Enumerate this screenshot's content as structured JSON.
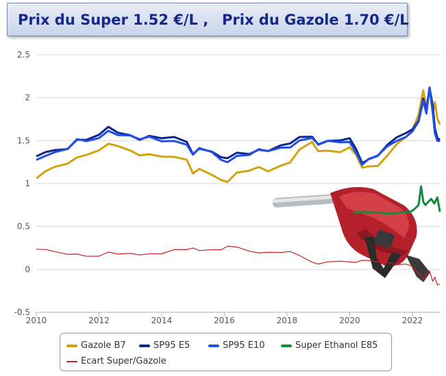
{
  "title": {
    "super_price": "Prix du Super 1.52 €/L ,",
    "diesel_price": "Prix du Gazole 1.70 €/L"
  },
  "chart_data": {
    "type": "line",
    "title": "Prix du Super 1.52 €/L , Prix du Gazole 1.70 €/L",
    "xlabel": "",
    "ylabel": "",
    "xlim": [
      2010,
      2022.9
    ],
    "ylim": [
      -0.5,
      2.5
    ],
    "x_ticks": [
      "2010",
      "2012",
      "2014",
      "2016",
      "2018",
      "2020",
      "2022"
    ],
    "y_ticks": [
      "2.5",
      "2",
      "1.5",
      "1",
      "0.5",
      "0",
      "-0.5"
    ],
    "grid": true,
    "legend_position": "bottom",
    "series": [
      {
        "name": "Gazole B7",
        "color": "#d4a20e",
        "x": [
          2010.0,
          2010.3,
          2010.6,
          2011.0,
          2011.3,
          2011.6,
          2012.0,
          2012.3,
          2012.6,
          2013.0,
          2013.3,
          2013.6,
          2014.0,
          2014.4,
          2014.8,
          2015.0,
          2015.2,
          2015.6,
          2015.9,
          2016.1,
          2016.4,
          2016.8,
          2017.1,
          2017.4,
          2017.8,
          2018.1,
          2018.4,
          2018.8,
          2019.0,
          2019.3,
          2019.7,
          2020.0,
          2020.2,
          2020.4,
          2020.6,
          2020.9,
          2021.2,
          2021.5,
          2021.8,
          2022.0,
          2022.2,
          2022.35,
          2022.45,
          2022.55,
          2022.65,
          2022.72,
          2022.8,
          2022.88
        ],
        "y": [
          1.06,
          1.13,
          1.18,
          1.23,
          1.32,
          1.35,
          1.39,
          1.45,
          1.42,
          1.38,
          1.34,
          1.36,
          1.32,
          1.3,
          1.26,
          1.11,
          1.18,
          1.12,
          1.05,
          1.01,
          1.11,
          1.14,
          1.2,
          1.16,
          1.22,
          1.24,
          1.38,
          1.47,
          1.38,
          1.4,
          1.38,
          1.42,
          1.32,
          1.17,
          1.2,
          1.22,
          1.34,
          1.46,
          1.53,
          1.6,
          1.8,
          2.1,
          1.9,
          2.12,
          1.8,
          1.93,
          1.75,
          1.7
        ]
      },
      {
        "name": "SP95 E5",
        "color": "#10268c",
        "x": [
          2010.0,
          2010.3,
          2010.6,
          2011.0,
          2011.3,
          2011.6,
          2012.0,
          2012.3,
          2012.6,
          2013.0,
          2013.3,
          2013.6,
          2014.0,
          2014.4,
          2014.8,
          2015.0,
          2015.2,
          2015.6,
          2015.9,
          2016.1,
          2016.4,
          2016.8,
          2017.1,
          2017.4,
          2017.8,
          2018.1,
          2018.4,
          2018.8,
          2019.0,
          2019.3,
          2019.7,
          2020.0,
          2020.2,
          2020.4,
          2020.6,
          2020.9,
          2021.2,
          2021.5,
          2021.8,
          2022.0,
          2022.2,
          2022.35,
          2022.45,
          2022.55,
          2022.65,
          2022.72,
          2022.8,
          2022.88
        ],
        "y": [
          1.3,
          1.36,
          1.4,
          1.42,
          1.52,
          1.5,
          1.55,
          1.65,
          1.6,
          1.58,
          1.52,
          1.55,
          1.51,
          1.53,
          1.49,
          1.36,
          1.42,
          1.37,
          1.29,
          1.28,
          1.36,
          1.36,
          1.41,
          1.38,
          1.43,
          1.45,
          1.54,
          1.56,
          1.47,
          1.5,
          1.49,
          1.51,
          1.4,
          1.25,
          1.3,
          1.33,
          1.44,
          1.52,
          1.58,
          1.64,
          1.75,
          2.0,
          1.85,
          2.1,
          1.9,
          1.65,
          1.55,
          1.52
        ]
      },
      {
        "name": "SP95 E10",
        "color": "#1f4fe6",
        "x": [
          2010.0,
          2010.3,
          2010.6,
          2011.0,
          2011.3,
          2011.6,
          2012.0,
          2012.3,
          2012.6,
          2013.0,
          2013.3,
          2013.6,
          2014.0,
          2014.4,
          2014.8,
          2015.0,
          2015.2,
          2015.6,
          2015.9,
          2016.1,
          2016.4,
          2016.8,
          2017.1,
          2017.4,
          2017.8,
          2018.1,
          2018.4,
          2018.8,
          2019.0,
          2019.3,
          2019.7,
          2020.0,
          2020.2,
          2020.4,
          2020.6,
          2020.9,
          2021.2,
          2021.5,
          2021.8,
          2022.0,
          2022.2,
          2022.35,
          2022.45,
          2022.55,
          2022.65,
          2022.72,
          2022.8,
          2022.88
        ],
        "y": [
          1.28,
          1.34,
          1.38,
          1.4,
          1.5,
          1.48,
          1.53,
          1.63,
          1.58,
          1.56,
          1.5,
          1.53,
          1.49,
          1.51,
          1.47,
          1.34,
          1.4,
          1.35,
          1.27,
          1.26,
          1.34,
          1.34,
          1.39,
          1.36,
          1.41,
          1.43,
          1.52,
          1.54,
          1.45,
          1.48,
          1.47,
          1.49,
          1.38,
          1.23,
          1.28,
          1.31,
          1.42,
          1.5,
          1.56,
          1.62,
          1.72,
          1.95,
          1.8,
          2.12,
          1.85,
          1.6,
          1.5,
          1.48
        ]
      },
      {
        "name": "Super Ethanol E85",
        "color": "#168a3c",
        "x": [
          2020.1,
          2020.5,
          2020.9,
          2021.3,
          2021.7,
          2021.9,
          2022.0,
          2022.1,
          2022.2,
          2022.28,
          2022.35,
          2022.42,
          2022.5,
          2022.6,
          2022.7,
          2022.8,
          2022.88
        ],
        "y": [
          0.68,
          0.67,
          0.65,
          0.63,
          0.66,
          0.68,
          0.7,
          0.72,
          0.74,
          0.95,
          0.78,
          0.76,
          0.8,
          0.83,
          0.76,
          0.82,
          0.66
        ]
      },
      {
        "name": "Ecart Super/Gazole",
        "color": "#cc1f1f",
        "x": [
          2010.0,
          2010.3,
          2010.6,
          2011.0,
          2011.3,
          2011.6,
          2012.0,
          2012.3,
          2012.6,
          2013.0,
          2013.3,
          2013.6,
          2014.0,
          2014.4,
          2014.8,
          2015.0,
          2015.2,
          2015.6,
          2015.9,
          2016.1,
          2016.4,
          2016.8,
          2017.1,
          2017.4,
          2017.8,
          2018.1,
          2018.4,
          2018.8,
          2019.0,
          2019.3,
          2019.7,
          2020.0,
          2020.2,
          2020.4,
          2020.6,
          2020.9,
          2021.2,
          2021.5,
          2021.8,
          2022.0,
          2022.2,
          2022.35,
          2022.45,
          2022.55,
          2022.65,
          2022.72,
          2022.8,
          2022.88
        ],
        "y": [
          0.23,
          0.22,
          0.2,
          0.18,
          0.19,
          0.16,
          0.15,
          0.19,
          0.17,
          0.19,
          0.18,
          0.19,
          0.18,
          0.22,
          0.22,
          0.25,
          0.23,
          0.24,
          0.23,
          0.26,
          0.25,
          0.21,
          0.2,
          0.21,
          0.2,
          0.2,
          0.15,
          0.08,
          0.07,
          0.1,
          0.1,
          0.08,
          0.07,
          0.1,
          0.11,
          0.1,
          0.09,
          0.05,
          0.05,
          0.03,
          -0.05,
          -0.1,
          -0.05,
          -0.02,
          -0.15,
          -0.1,
          -0.18,
          -0.16
        ]
      }
    ]
  }
}
